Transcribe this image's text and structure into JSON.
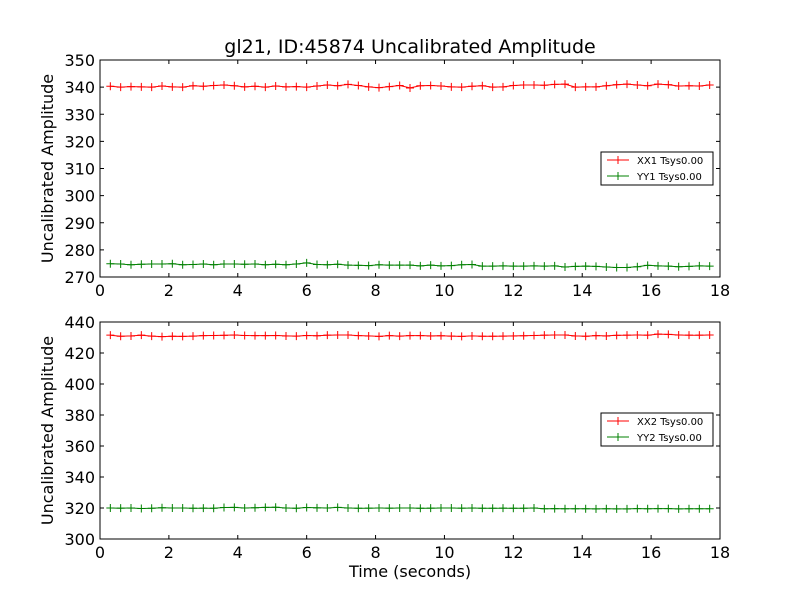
{
  "chart_data": {
    "title": "gl21, ID:45874 Uncalibrated Amplitude",
    "xlabel": "Time (seconds)",
    "charts": [
      {
        "type": "line",
        "ylabel": "Uncalibrated Amplitude",
        "xlim": [
          0,
          18
        ],
        "ylim": [
          270,
          350
        ],
        "xticks": [
          "0",
          "2",
          "4",
          "6",
          "8",
          "10",
          "12",
          "14",
          "16",
          "18"
        ],
        "yticks": [
          "270",
          "280",
          "290",
          "300",
          "310",
          "320",
          "330",
          "340",
          "350"
        ],
        "x": [
          0.3,
          0.6,
          0.9,
          1.2,
          1.5,
          1.8,
          2.1,
          2.4,
          2.7,
          3.0,
          3.3,
          3.6,
          3.9,
          4.2,
          4.5,
          4.8,
          5.1,
          5.4,
          5.7,
          6.0,
          6.3,
          6.6,
          6.9,
          7.2,
          7.5,
          7.8,
          8.1,
          8.4,
          8.7,
          9.0,
          9.3,
          9.6,
          9.9,
          10.2,
          10.5,
          10.8,
          11.1,
          11.4,
          11.7,
          12.0,
          12.3,
          12.6,
          12.9,
          13.2,
          13.5,
          13.8,
          14.1,
          14.4,
          14.7,
          15.0,
          15.3,
          15.6,
          15.9,
          16.2,
          16.5,
          16.8,
          17.1,
          17.4,
          17.7
        ],
        "legend": "center-right",
        "series": [
          {
            "name": "XX1 Tsys0.00",
            "color": "#ff0000",
            "values": [
              340.3,
              340.0,
              340.2,
              340.1,
              340.0,
              340.4,
              340.1,
              340.0,
              340.5,
              340.3,
              340.6,
              340.8,
              340.5,
              340.1,
              340.3,
              340.0,
              340.4,
              340.1,
              340.2,
              340.0,
              340.4,
              340.8,
              340.5,
              341.0,
              340.6,
              340.1,
              339.8,
              340.2,
              340.6,
              339.7,
              340.5,
              340.6,
              340.4,
              340.1,
              340.0,
              340.3,
              340.5,
              340.0,
              340.1,
              340.6,
              340.8,
              340.8,
              340.7,
              341.0,
              341.1,
              340.0,
              340.1,
              340.1,
              340.5,
              340.9,
              341.1,
              340.8,
              340.5,
              341.1,
              340.9,
              340.4,
              340.5,
              340.4,
              340.8
            ]
          },
          {
            "name": "YY1 Tsys0.00",
            "color": "#008000",
            "values": [
              274.9,
              274.8,
              274.5,
              274.7,
              274.8,
              274.8,
              274.9,
              274.5,
              274.6,
              274.8,
              274.5,
              274.8,
              274.8,
              274.7,
              274.8,
              274.5,
              274.7,
              274.5,
              274.8,
              275.2,
              274.6,
              274.5,
              274.7,
              274.4,
              274.3,
              274.2,
              274.5,
              274.4,
              274.4,
              274.4,
              274.1,
              274.4,
              274.1,
              274.2,
              274.5,
              274.6,
              274.0,
              274.0,
              274.1,
              274.0,
              274.0,
              274.1,
              274.0,
              274.1,
              273.7,
              273.9,
              274.0,
              273.9,
              273.7,
              273.5,
              273.5,
              273.8,
              274.3,
              274.1,
              274.0,
              273.8,
              273.9,
              274.1,
              274.0
            ]
          }
        ]
      },
      {
        "type": "line",
        "ylabel": "Uncalibrated Amplitude",
        "xlim": [
          0,
          18
        ],
        "ylim": [
          300,
          440
        ],
        "xticks": [
          "0",
          "2",
          "4",
          "6",
          "8",
          "10",
          "12",
          "14",
          "16",
          "18"
        ],
        "yticks": [
          "300",
          "320",
          "340",
          "360",
          "380",
          "400",
          "420",
          "440"
        ],
        "x": [
          0.3,
          0.6,
          0.9,
          1.2,
          1.5,
          1.8,
          2.1,
          2.4,
          2.7,
          3.0,
          3.3,
          3.6,
          3.9,
          4.2,
          4.5,
          4.8,
          5.1,
          5.4,
          5.7,
          6.0,
          6.3,
          6.6,
          6.9,
          7.2,
          7.5,
          7.8,
          8.1,
          8.4,
          8.7,
          9.0,
          9.3,
          9.6,
          9.9,
          10.2,
          10.5,
          10.8,
          11.1,
          11.4,
          11.7,
          12.0,
          12.3,
          12.6,
          12.9,
          13.2,
          13.5,
          13.8,
          14.1,
          14.4,
          14.7,
          15.0,
          15.3,
          15.6,
          15.9,
          16.2,
          16.5,
          16.8,
          17.1,
          17.4,
          17.7
        ],
        "legend": "center-right",
        "series": [
          {
            "name": "XX2 Tsys0.00",
            "color": "#ff0000",
            "values": [
              431.5,
              430.8,
              431.0,
              431.5,
              430.9,
              430.6,
              430.8,
              430.7,
              430.9,
              431.2,
              431.3,
              431.4,
              431.6,
              431.3,
              431.2,
              431.2,
              431.3,
              431.0,
              430.9,
              431.3,
              431.1,
              431.5,
              431.6,
              431.6,
              431.2,
              431.0,
              430.7,
              431.2,
              430.9,
              431.2,
              431.2,
              431.0,
              431.1,
              430.9,
              430.7,
              431.0,
              430.8,
              430.8,
              430.9,
              431.0,
              431.1,
              431.3,
              431.5,
              431.6,
              431.6,
              431.0,
              430.8,
              431.2,
              431.0,
              431.4,
              431.5,
              431.6,
              431.5,
              432.2,
              432.0,
              431.6,
              431.5,
              431.5,
              431.6
            ]
          },
          {
            "name": "YY2 Tsys0.00",
            "color": "#008000",
            "values": [
              320.0,
              319.9,
              320.0,
              319.7,
              319.8,
              320.2,
              320.0,
              320.0,
              319.8,
              319.9,
              319.8,
              320.3,
              320.4,
              320.0,
              320.2,
              320.4,
              320.5,
              320.0,
              319.8,
              320.3,
              320.1,
              320.0,
              320.4,
              320.0,
              319.8,
              319.9,
              320.0,
              319.9,
              320.0,
              320.0,
              319.8,
              319.9,
              320.0,
              320.0,
              319.9,
              320.0,
              319.8,
              319.8,
              319.9,
              319.8,
              319.8,
              320.0,
              319.5,
              319.6,
              319.5,
              319.5,
              319.5,
              319.4,
              319.5,
              319.4,
              319.4,
              319.6,
              319.5,
              319.6,
              319.6,
              319.4,
              319.5,
              319.5,
              319.5
            ]
          }
        ]
      }
    ]
  }
}
